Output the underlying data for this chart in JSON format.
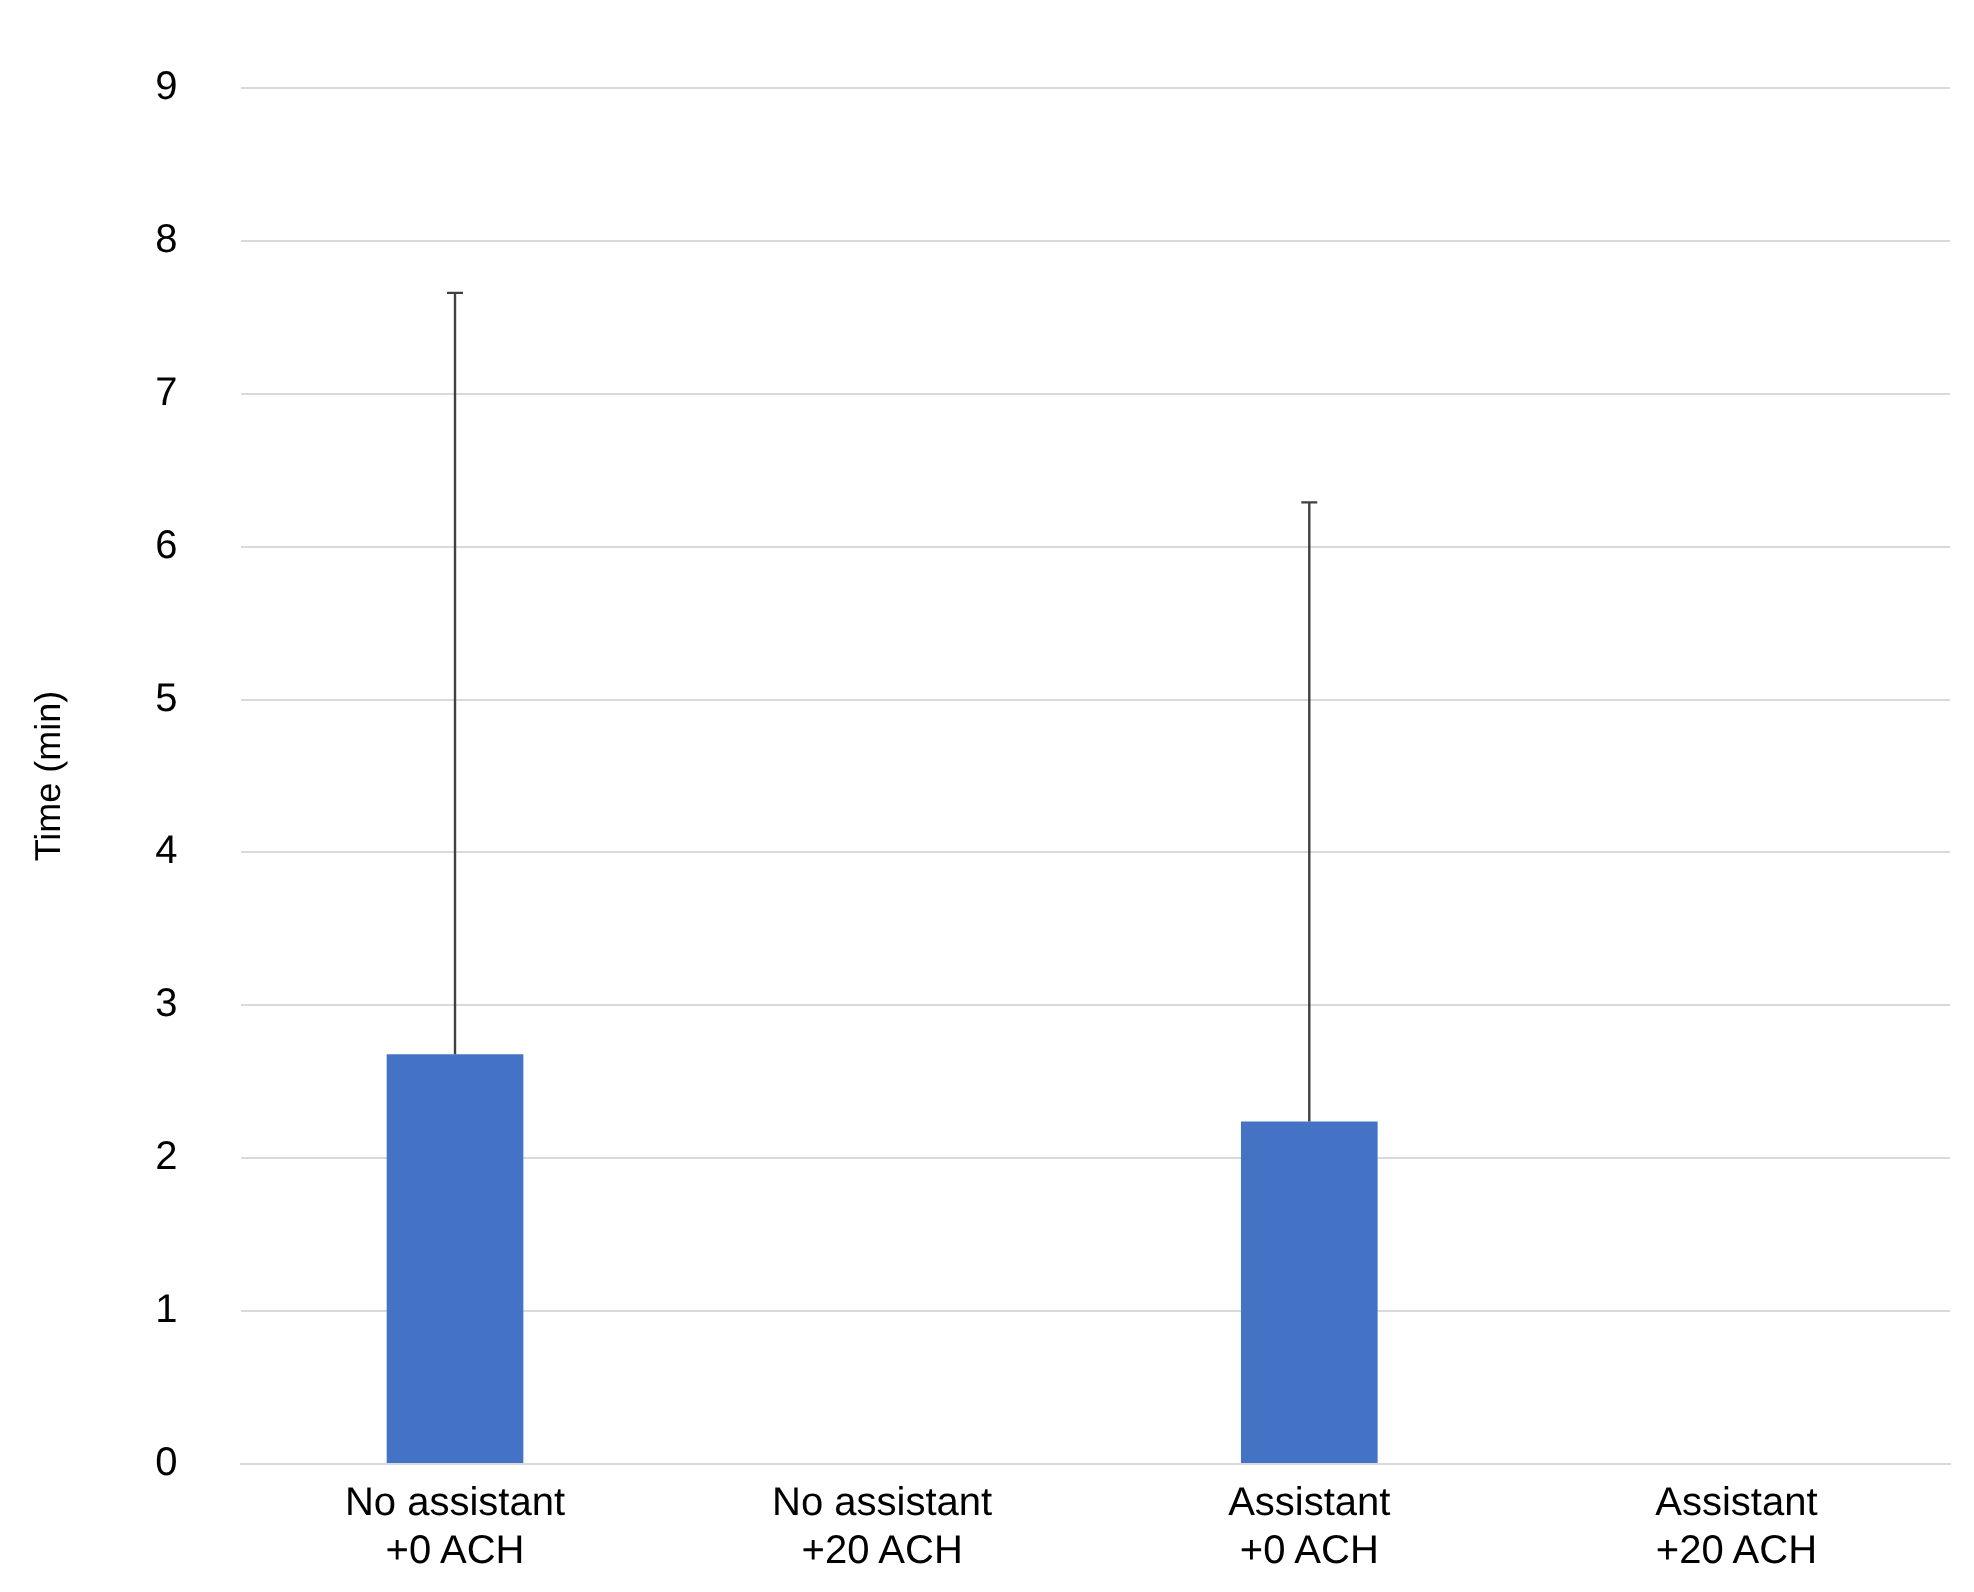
{
  "chart_data": {
    "type": "bar",
    "ylabel": "Time (min)",
    "categories": [
      "No assistant\n+0 ACH",
      "No assistant\n+20 ACH",
      "Assistant\n+0 ACH",
      "Assistant\n+20 ACH"
    ],
    "values": [
      2.68,
      0,
      2.24,
      0
    ],
    "errors": [
      [
        2.68,
        7.66
      ],
      null,
      [
        2.24,
        6.29
      ],
      null
    ],
    "color": "#4472c4",
    "ylim": [
      0,
      9
    ],
    "yticks": [
      0,
      1,
      2,
      3,
      4,
      5,
      6,
      7,
      8,
      9
    ],
    "grid": "y",
    "legend": false
  }
}
